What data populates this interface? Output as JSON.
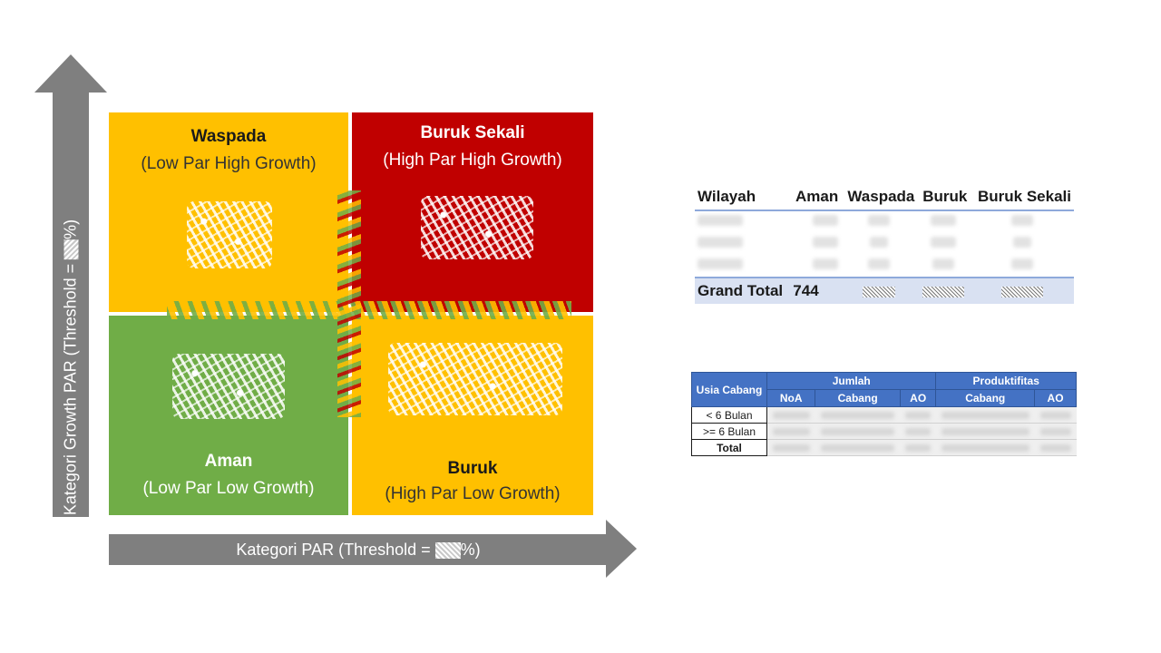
{
  "diagram": {
    "y_axis_label": "Kategori Growth PAR (Threshold = ",
    "y_axis_label_suffix": "%)",
    "x_axis_label": "Kategori PAR (Threshold = ",
    "x_axis_label_suffix": "%)",
    "quadrants": {
      "waspada": {
        "title": "Waspada",
        "subtitle": "(Low Par High Growth)",
        "color": "#ffc000"
      },
      "buruk_sekali": {
        "title": "Buruk Sekali",
        "subtitle": "(High Par High Growth)",
        "color": "#c00000"
      },
      "aman": {
        "title": "Aman",
        "subtitle": "(Low Par Low Growth)",
        "color": "#70ad47"
      },
      "buruk": {
        "title": "Buruk",
        "subtitle": "(High Par Low Growth)",
        "color": "#ffc000"
      }
    },
    "axis_color": "#7f7f7f"
  },
  "wilayah_table": {
    "headers": [
      "Wilayah",
      "Aman",
      "Waspada",
      "Buruk",
      "Buruk Sekali"
    ],
    "total_label": "Grand Total",
    "total_aman": "744"
  },
  "usia_table": {
    "header_usia": "Usia Cabang",
    "group_jumlah": "Jumlah",
    "group_produktifitas": "Produktifitas",
    "sub_headers": [
      "NoA",
      "Cabang",
      "AO",
      "Cabang",
      "AO"
    ],
    "rows": [
      "< 6 Bulan",
      ">= 6 Bulan",
      "Total"
    ],
    "header_color": "#4472c4"
  }
}
